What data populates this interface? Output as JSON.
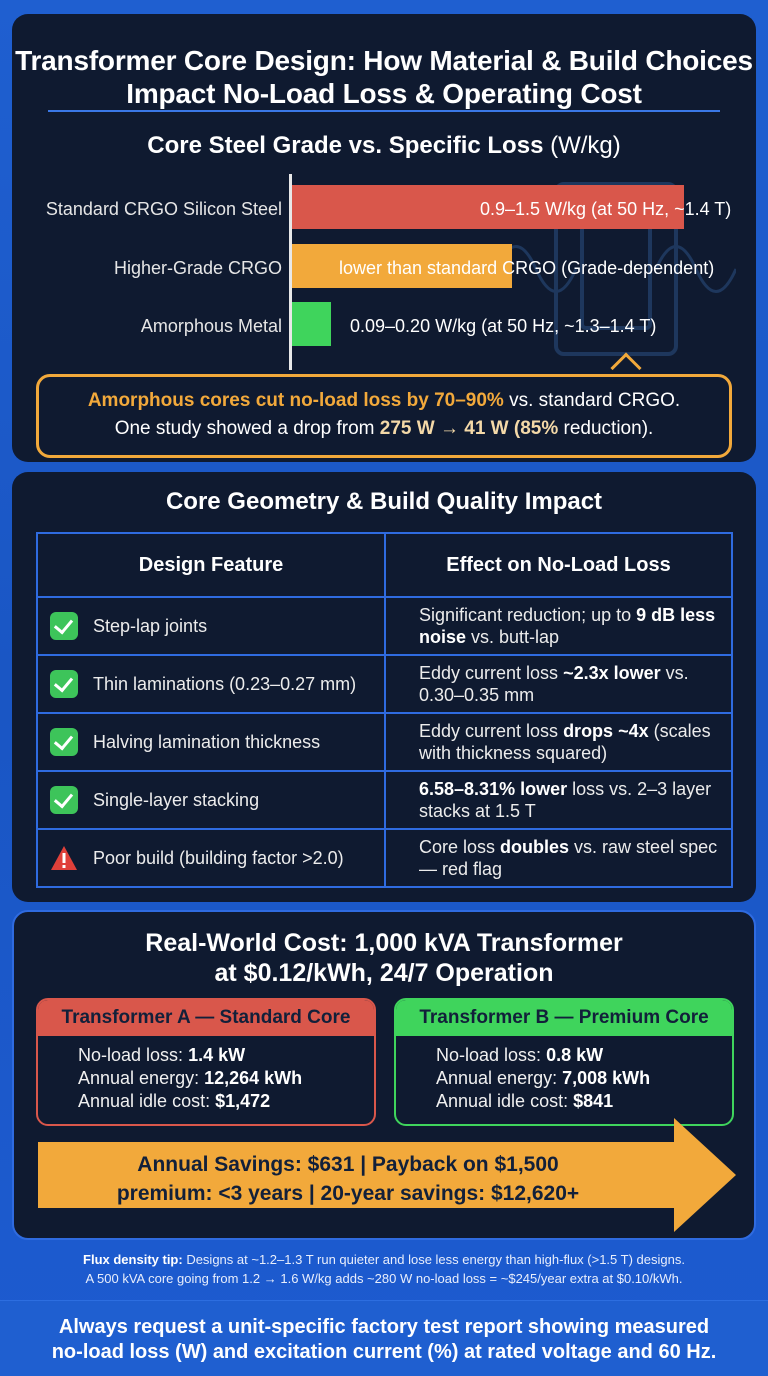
{
  "main_title": "Transformer Core Design: How Material & Build Choices Impact No-Load Loss & Operating Cost",
  "section1": {
    "title": "Core Steel Grade vs. Specific Loss",
    "unit": "(W/kg)",
    "chart_data": {
      "type": "bar",
      "orientation": "horizontal",
      "categories": [
        "Standard CRGO Silicon Steel",
        "Higher-Grade CRGO",
        "Amorphous Metal"
      ],
      "value_labels": [
        "0.9–1.5 W/kg (at 50 Hz, ~1.4 T)",
        "lower than standard CRGO (Grade-dependent)",
        "0.09–0.20 W/kg (at 50 Hz, ~1.3–1.4 T)"
      ],
      "ranges": [
        [
          0.9,
          1.5
        ],
        null,
        [
          0.09,
          0.2
        ]
      ],
      "bar_relative_length": [
        1.0,
        0.56,
        0.1
      ],
      "colors": [
        "#d9574b",
        "#f2a93b",
        "#3fd45c"
      ]
    },
    "callout": {
      "line1_highlight": "Amorphous cores cut no-load loss by 70–90%",
      "line1_rest": " vs. standard CRGO.",
      "line2_pre": "One study showed a drop from ",
      "line2_highlight": "275 W → 41 W (85%",
      "line2_post": " reduction)."
    }
  },
  "section2": {
    "title": "Core Geometry & Build Quality Impact",
    "headers": [
      "Design Feature",
      "Effect on No-Load Loss"
    ],
    "rows": [
      {
        "icon": "check-icon",
        "feature": "Step-lap joints",
        "effect_pre": "Significant reduction; up to ",
        "effect_bold": "9 dB less noise",
        "effect_post": " vs. butt-lap"
      },
      {
        "icon": "check-icon",
        "feature": "Thin laminations (0.23–0.27 mm)",
        "effect_pre": "Eddy current loss ",
        "effect_bold": "~2.3x lower",
        "effect_post": " vs. 0.30–0.35 mm"
      },
      {
        "icon": "check-icon",
        "feature": "Halving lamination thickness",
        "effect_pre": "Eddy current loss ",
        "effect_bold": "drops ~4x",
        "effect_post": " (scales with thickness squared)"
      },
      {
        "icon": "check-icon",
        "feature": "Single-layer stacking",
        "effect_pre": "",
        "effect_bold": "6.58–8.31% lower",
        "effect_post": " loss vs. 2–3 layer stacks at 1.5 T"
      },
      {
        "icon": "warning-icon",
        "feature": "Poor build (building factor >2.0)",
        "effect_pre": "Core loss ",
        "effect_bold": "doubles",
        "effect_post": " vs. raw steel spec — red flag"
      }
    ]
  },
  "section3": {
    "title_line1": "Real-World Cost: 1,000 kVA Transformer",
    "title_line2": "at $0.12/kWh, 24/7 Operation",
    "card_a": {
      "title": "Transformer A — Standard Core",
      "color": "#d9574b",
      "lines": [
        {
          "label": "No-load loss: ",
          "value": "1.4 kW"
        },
        {
          "label": "Annual energy: ",
          "value": "12,264 kWh"
        },
        {
          "label": "Annual idle cost: ",
          "value": "$1,472"
        }
      ]
    },
    "card_b": {
      "title": "Transformer B — Premium Core",
      "color": "#3fd45c",
      "lines": [
        {
          "label": "No-load loss: ",
          "value": "0.8 kW"
        },
        {
          "label": "Annual energy: ",
          "value": "7,008 kWh"
        },
        {
          "label": "Annual idle cost: ",
          "value": "$841"
        }
      ]
    },
    "savings_line1": "Annual Savings: $631 | Payback on $1,500",
    "savings_line2": "premium: <3 years | 20-year savings: $12,620+",
    "arrow_color": "#f2a93b"
  },
  "tip": {
    "label": "Flux density tip:",
    "text1": " Designs at ~1.2–1.3 T run quieter and lose less energy than high-flux (>1.5 T) designs.",
    "text2": "A 500 kVA core going from 1.2 → 1.6 W/kg adds ~280 W no-load loss = ~$245/year extra at $0.10/kWh."
  },
  "footer": {
    "line1": "Always request a unit-specific factory test report showing measured",
    "line2": "no-load loss (W) and excitation current (%) at rated voltage and 60 Hz."
  }
}
